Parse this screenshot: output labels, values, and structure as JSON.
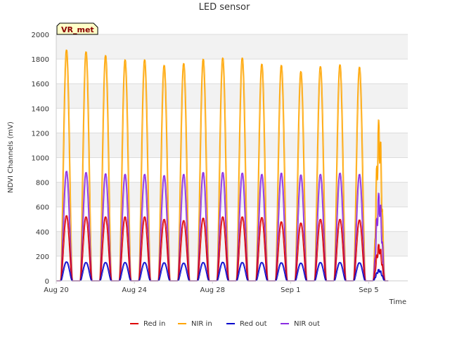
{
  "chart_data": {
    "type": "line",
    "title": "LED sensor",
    "xlabel": "Time",
    "ylabel": "NDVI Channels (mV)",
    "site_badge": "VR_met",
    "ylim": [
      0,
      2000
    ],
    "y_ticks": [
      0,
      200,
      400,
      600,
      800,
      1000,
      1200,
      1400,
      1600,
      1800,
      2000
    ],
    "xlim": [
      "2020-08-20",
      "2020-09-07"
    ],
    "x_ticks": [
      {
        "date": "2020-08-20",
        "label": "Aug 20"
      },
      {
        "date": "2020-08-24",
        "label": "Aug 24"
      },
      {
        "date": "2020-08-28",
        "label": "Aug 28"
      },
      {
        "date": "2020-09-01",
        "label": "Sep 1"
      },
      {
        "date": "2020-09-05",
        "label": "Sep 5"
      }
    ],
    "grid": true,
    "legend_position": "bottom",
    "peak_dates": [
      "2020-08-20",
      "2020-08-21",
      "2020-08-22",
      "2020-08-23",
      "2020-08-24",
      "2020-08-25",
      "2020-08-26",
      "2020-08-27",
      "2020-08-28",
      "2020-08-29",
      "2020-08-30",
      "2020-08-31",
      "2020-09-01",
      "2020-09-02",
      "2020-09-03",
      "2020-09-04",
      "2020-09-05"
    ],
    "series": [
      {
        "name": "Red in",
        "color": "#dd0000",
        "peaks": [
          530,
          520,
          520,
          520,
          520,
          500,
          490,
          510,
          520,
          520,
          515,
          480,
          470,
          500,
          500,
          495,
          300
        ]
      },
      {
        "name": "NIR in",
        "color": "#ffa500",
        "peaks": [
          1875,
          1860,
          1830,
          1795,
          1795,
          1750,
          1765,
          1800,
          1810,
          1810,
          1760,
          1750,
          1700,
          1740,
          1755,
          1735,
          1320
        ]
      },
      {
        "name": "Red out",
        "color": "#0000cc",
        "peaks": [
          155,
          150,
          150,
          150,
          150,
          148,
          145,
          150,
          152,
          150,
          150,
          148,
          145,
          150,
          150,
          148,
          95
        ]
      },
      {
        "name": "NIR out",
        "color": "#8a2be2",
        "peaks": [
          890,
          880,
          870,
          865,
          865,
          855,
          865,
          880,
          880,
          875,
          865,
          875,
          860,
          865,
          875,
          865,
          720
        ]
      }
    ]
  }
}
